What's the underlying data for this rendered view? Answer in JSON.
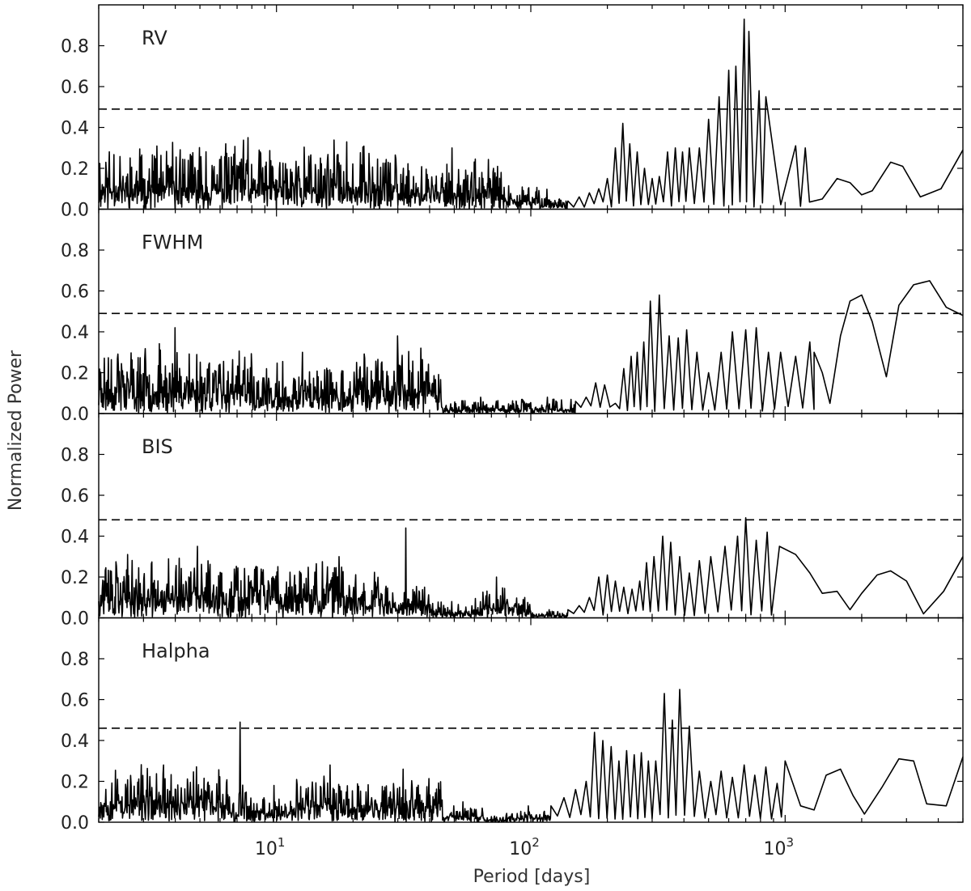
{
  "chart_data": {
    "type": "line",
    "xlabel": "Period [days]",
    "ylabel": "Normalized Power",
    "x_scale": "log",
    "xlim": [
      2,
      5000
    ],
    "ylim": [
      0,
      1
    ],
    "x_ticks": [
      {
        "value": 10,
        "base": "10",
        "exp": "1"
      },
      {
        "value": 100,
        "base": "10",
        "exp": "2"
      },
      {
        "value": 1000,
        "base": "10",
        "exp": "3"
      }
    ],
    "y_ticks": [
      "0.0",
      "0.2",
      "0.4",
      "0.6",
      "0.8"
    ],
    "panels": [
      {
        "label": "RV",
        "threshold": 0.49,
        "seed": 11,
        "segments": [
          [
            2,
            0.11,
            0.24,
            0.35
          ],
          [
            30,
            0.08,
            0.17,
            0.3
          ],
          [
            80,
            0.04,
            0.08,
            0.1
          ],
          [
            120,
            0.02,
            0.04,
            0.05
          ]
        ],
        "peaks": [
          [
            140,
            0.04
          ],
          [
            155,
            0.06
          ],
          [
            170,
            0.08
          ],
          [
            185,
            0.1
          ],
          [
            200,
            0.15
          ],
          [
            215,
            0.3
          ],
          [
            230,
            0.42
          ],
          [
            245,
            0.32
          ],
          [
            262,
            0.28
          ],
          [
            280,
            0.2
          ],
          [
            300,
            0.15
          ],
          [
            320,
            0.16
          ],
          [
            345,
            0.28
          ],
          [
            370,
            0.3
          ],
          [
            395,
            0.28
          ],
          [
            420,
            0.3
          ],
          [
            460,
            0.3
          ],
          [
            500,
            0.44
          ],
          [
            550,
            0.55
          ],
          [
            600,
            0.68
          ],
          [
            640,
            0.7
          ],
          [
            690,
            0.93
          ],
          [
            720,
            0.87
          ],
          [
            790,
            0.58
          ],
          [
            840,
            0.55
          ],
          [
            1100,
            0.31
          ],
          [
            1200,
            0.3
          ]
        ],
        "tail": [
          [
            1000,
            0.0
          ],
          [
            1100,
            0.31
          ],
          [
            1200,
            0.3
          ],
          [
            1400,
            0.05
          ],
          [
            1600,
            0.15
          ],
          [
            1800,
            0.13
          ],
          [
            2000,
            0.07
          ],
          [
            2200,
            0.09
          ],
          [
            2600,
            0.23
          ],
          [
            2900,
            0.21
          ],
          [
            3400,
            0.06
          ],
          [
            4100,
            0.1
          ],
          [
            5000,
            0.29
          ]
        ]
      },
      {
        "label": "FWHM",
        "threshold": 0.49,
        "seed": 23,
        "segments": [
          [
            2,
            0.12,
            0.24,
            0.42
          ],
          [
            8,
            0.08,
            0.18,
            0.3
          ],
          [
            20,
            0.12,
            0.22,
            0.38
          ],
          [
            45,
            0.02,
            0.05,
            0.08
          ],
          [
            90,
            0.02,
            0.06,
            0.08
          ]
        ],
        "peaks": [
          [
            150,
            0.06
          ],
          [
            165,
            0.08
          ],
          [
            180,
            0.15
          ],
          [
            195,
            0.14
          ],
          [
            215,
            0.05
          ],
          [
            232,
            0.22
          ],
          [
            248,
            0.28
          ],
          [
            262,
            0.3
          ],
          [
            278,
            0.35
          ],
          [
            295,
            0.55
          ],
          [
            320,
            0.58
          ],
          [
            350,
            0.38
          ],
          [
            380,
            0.37
          ],
          [
            410,
            0.41
          ],
          [
            450,
            0.3
          ],
          [
            500,
            0.2
          ],
          [
            560,
            0.3
          ],
          [
            620,
            0.4
          ],
          [
            700,
            0.41
          ],
          [
            770,
            0.42
          ],
          [
            860,
            0.3
          ],
          [
            960,
            0.3
          ],
          [
            1100,
            0.28
          ],
          [
            1250,
            0.35
          ]
        ],
        "tail": [
          [
            1300,
            0.3
          ],
          [
            1400,
            0.2
          ],
          [
            1500,
            0.05
          ],
          [
            1650,
            0.38
          ],
          [
            1800,
            0.55
          ],
          [
            2000,
            0.58
          ],
          [
            2200,
            0.45
          ],
          [
            2500,
            0.18
          ],
          [
            2800,
            0.53
          ],
          [
            3200,
            0.63
          ],
          [
            3700,
            0.65
          ],
          [
            4300,
            0.52
          ],
          [
            5000,
            0.48
          ]
        ]
      },
      {
        "label": "BIS",
        "threshold": 0.48,
        "seed": 37,
        "segments": [
          [
            2,
            0.1,
            0.22,
            0.35
          ],
          [
            12,
            0.1,
            0.2,
            0.3
          ],
          [
            26,
            0.06,
            0.14,
            0.44
          ],
          [
            40,
            0.03,
            0.06,
            0.08
          ],
          [
            60,
            0.05,
            0.12,
            0.2
          ],
          [
            90,
            0.03,
            0.07,
            0.1
          ],
          [
            100,
            0.01,
            0.03,
            0.04
          ]
        ],
        "peaks": [
          [
            140,
            0.04
          ],
          [
            155,
            0.06
          ],
          [
            170,
            0.1
          ],
          [
            185,
            0.2
          ],
          [
            200,
            0.21
          ],
          [
            215,
            0.18
          ],
          [
            232,
            0.15
          ],
          [
            250,
            0.14
          ],
          [
            268,
            0.18
          ],
          [
            285,
            0.27
          ],
          [
            305,
            0.3
          ],
          [
            330,
            0.4
          ],
          [
            355,
            0.37
          ],
          [
            385,
            0.3
          ],
          [
            420,
            0.22
          ],
          [
            460,
            0.28
          ],
          [
            510,
            0.3
          ],
          [
            580,
            0.35
          ],
          [
            650,
            0.4
          ],
          [
            700,
            0.49
          ],
          [
            770,
            0.38
          ],
          [
            850,
            0.42
          ]
        ],
        "tail": [
          [
            950,
            0.35
          ],
          [
            1100,
            0.31
          ],
          [
            1250,
            0.22
          ],
          [
            1400,
            0.12
          ],
          [
            1600,
            0.13
          ],
          [
            1800,
            0.04
          ],
          [
            2000,
            0.12
          ],
          [
            2300,
            0.21
          ],
          [
            2600,
            0.23
          ],
          [
            3000,
            0.18
          ],
          [
            3500,
            0.02
          ],
          [
            4200,
            0.13
          ],
          [
            5000,
            0.3
          ]
        ]
      },
      {
        "label": "Halpha",
        "threshold": 0.46,
        "seed": 53,
        "segments": [
          [
            2,
            0.1,
            0.2,
            0.28
          ],
          [
            6.5,
            0.06,
            0.15,
            0.49
          ],
          [
            8,
            0.05,
            0.1,
            0.18
          ],
          [
            12,
            0.08,
            0.18,
            0.28
          ],
          [
            22,
            0.08,
            0.15,
            0.26
          ],
          [
            45,
            0.03,
            0.06,
            0.1
          ],
          [
            65,
            0.01,
            0.02,
            0.03
          ],
          [
            80,
            0.02,
            0.04,
            0.08
          ]
        ],
        "peaks": [
          [
            120,
            0.08
          ],
          [
            135,
            0.12
          ],
          [
            150,
            0.16
          ],
          [
            165,
            0.2
          ],
          [
            178,
            0.44
          ],
          [
            192,
            0.4
          ],
          [
            207,
            0.37
          ],
          [
            222,
            0.3
          ],
          [
            238,
            0.35
          ],
          [
            255,
            0.33
          ],
          [
            272,
            0.34
          ],
          [
            290,
            0.3
          ],
          [
            310,
            0.3
          ],
          [
            335,
            0.63
          ],
          [
            360,
            0.5
          ],
          [
            385,
            0.65
          ],
          [
            420,
            0.47
          ],
          [
            460,
            0.25
          ],
          [
            510,
            0.2
          ],
          [
            560,
            0.25
          ],
          [
            620,
            0.22
          ],
          [
            690,
            0.28
          ],
          [
            760,
            0.23
          ],
          [
            840,
            0.27
          ],
          [
            930,
            0.19
          ]
        ],
        "tail": [
          [
            900,
            0.2
          ],
          [
            1000,
            0.3
          ],
          [
            1150,
            0.08
          ],
          [
            1300,
            0.06
          ],
          [
            1450,
            0.23
          ],
          [
            1650,
            0.26
          ],
          [
            1850,
            0.13
          ],
          [
            2050,
            0.04
          ],
          [
            2400,
            0.17
          ],
          [
            2800,
            0.31
          ],
          [
            3200,
            0.3
          ],
          [
            3600,
            0.09
          ],
          [
            4300,
            0.08
          ],
          [
            5000,
            0.32
          ]
        ]
      }
    ]
  }
}
